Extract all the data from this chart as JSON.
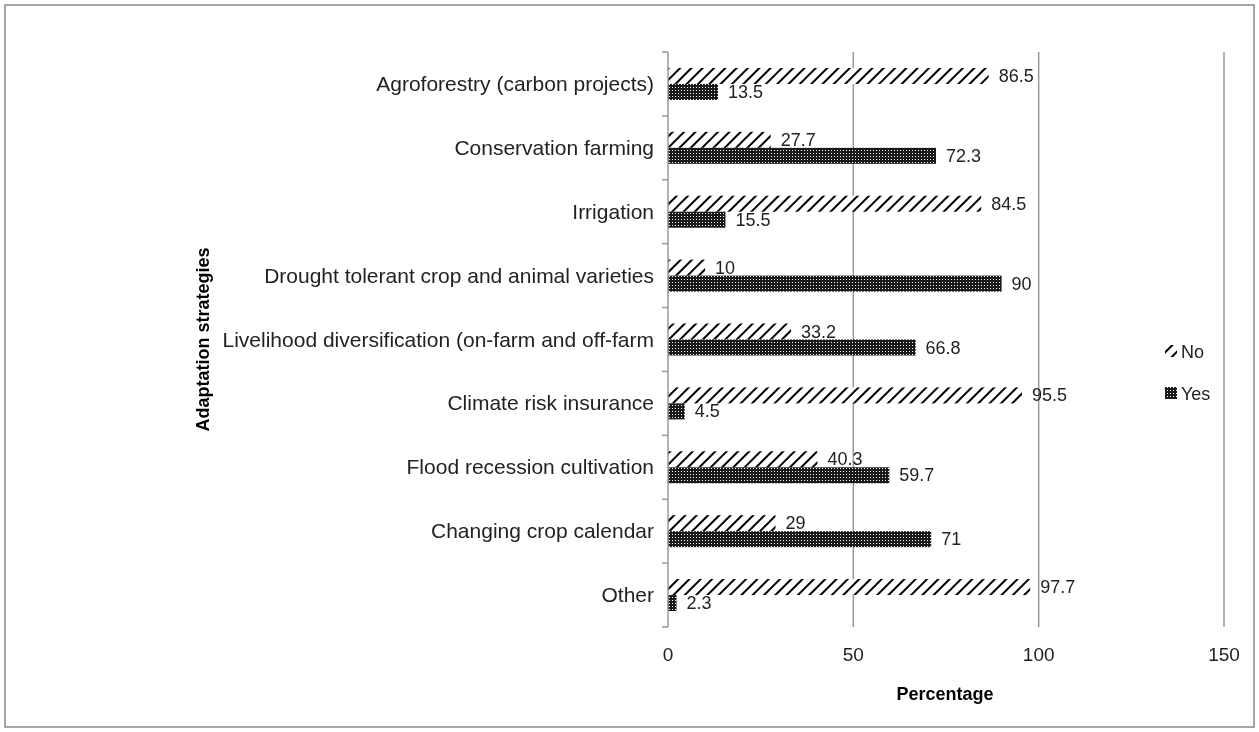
{
  "chart_data": {
    "type": "bar",
    "orientation": "horizontal",
    "ylabel": "Adaptation strategies",
    "xlabel": "Percentage",
    "categories": [
      "Agroforestry (carbon projects)",
      "Conservation farming",
      "Irrigation",
      "Drought tolerant crop and animal varieties",
      "Livelihood diversification (on-farm and off-farm",
      "Climate risk insurance",
      "Flood recession cultivation",
      "Changing crop calendar",
      "Other"
    ],
    "series": [
      {
        "name": "No",
        "color": "#000000",
        "values": [
          86.5,
          27.7,
          84.5,
          10,
          33.2,
          95.5,
          40.3,
          29,
          97.7
        ]
      },
      {
        "name": "Yes",
        "color": "#1a1a1a",
        "values": [
          13.5,
          72.3,
          15.5,
          90,
          66.8,
          4.5,
          59.7,
          71,
          2.3
        ]
      }
    ],
    "xlim": [
      0,
      150
    ],
    "xticks": [
      0,
      50,
      100,
      150
    ],
    "grid": "x",
    "legend": "right",
    "data_labels": true
  }
}
